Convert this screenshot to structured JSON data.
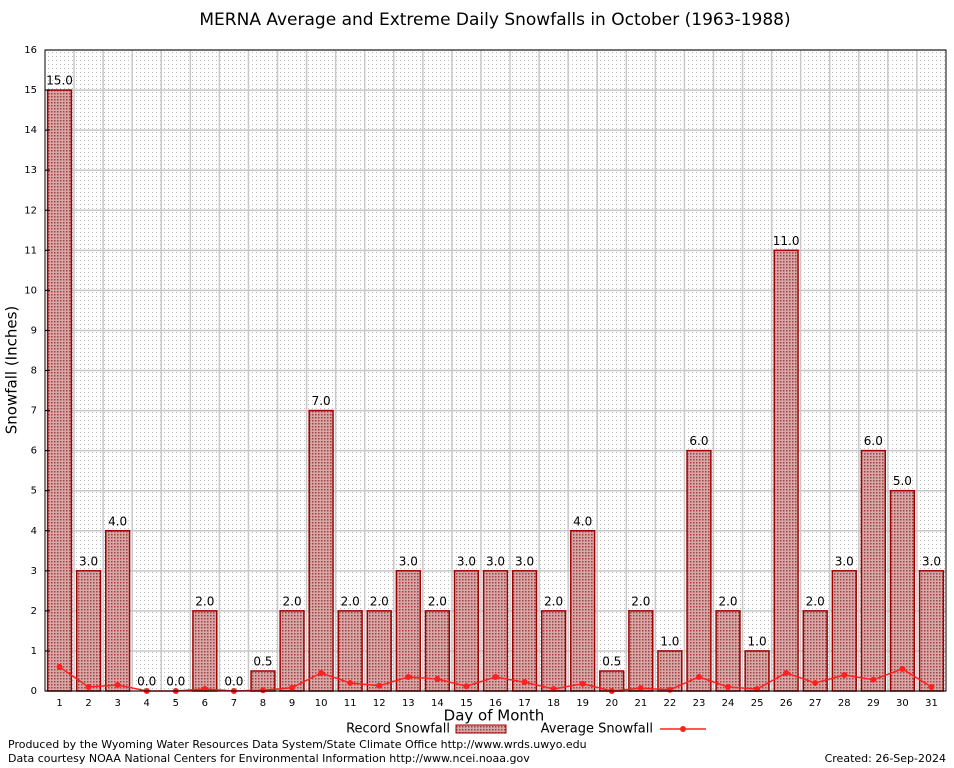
{
  "chart_data": {
    "type": "bar",
    "title": "MERNA Average and Extreme Daily Snowfalls in October (1963-1988)",
    "x_label": "Day of Month",
    "y_label": "Snowfall (Inches)",
    "categories": [
      "1",
      "2",
      "3",
      "4",
      "5",
      "6",
      "7",
      "8",
      "9",
      "10",
      "11",
      "12",
      "13",
      "14",
      "15",
      "16",
      "17",
      "18",
      "19",
      "20",
      "21",
      "22",
      "23",
      "24",
      "25",
      "26",
      "27",
      "28",
      "29",
      "30",
      "31"
    ],
    "series": [
      {
        "name": "Record Snowfall",
        "type": "bar",
        "color": "#a00000",
        "values": [
          15,
          3,
          4,
          0,
          0,
          2,
          0,
          0.5,
          2,
          7,
          2,
          2,
          3,
          2,
          3,
          3,
          3,
          2,
          4,
          0.5,
          2,
          1,
          6,
          2,
          1,
          11,
          2,
          3,
          6,
          5,
          3
        ],
        "value_labels": [
          "15.0",
          "3.0",
          "4.0",
          "0.0",
          "0.0",
          "2.0",
          "0.0",
          "0.5",
          "2.0",
          "7.0",
          "2.0",
          "2.0",
          "3.0",
          "2.0",
          "3.0",
          "3.0",
          "3.0",
          "2.0",
          "4.0",
          "0.5",
          "2.0",
          "1.0",
          "6.0",
          "2.0",
          "1.0",
          "11.0",
          "2.0",
          "3.0",
          "6.0",
          "5.0",
          "3.0"
        ]
      },
      {
        "name": "Average Snowfall",
        "type": "line",
        "color": "#ff2020",
        "values": [
          0.6,
          0.1,
          0.15,
          0,
          0,
          0.05,
          0,
          0.02,
          0.08,
          0.45,
          0.2,
          0.13,
          0.35,
          0.3,
          0.12,
          0.35,
          0.22,
          0.05,
          0.18,
          0,
          0.07,
          0.03,
          0.35,
          0.1,
          0.05,
          0.45,
          0.2,
          0.4,
          0.28,
          0.55,
          0.1
        ]
      }
    ],
    "ylim": [
      0,
      16
    ],
    "yticks": [
      0,
      1,
      2,
      3,
      4,
      5,
      6,
      7,
      8,
      9,
      10,
      11,
      12,
      13,
      14,
      15,
      16
    ],
    "grid": true,
    "footer": [
      "Produced by the Wyoming Water Resources Data System/State Climate Office http://www.wrds.uwyo.edu",
      "Data courtesy NOAA National Centers for Environmental Information http://www.ncei.noaa.gov"
    ],
    "created": "Created: 26-Sep-2024"
  }
}
